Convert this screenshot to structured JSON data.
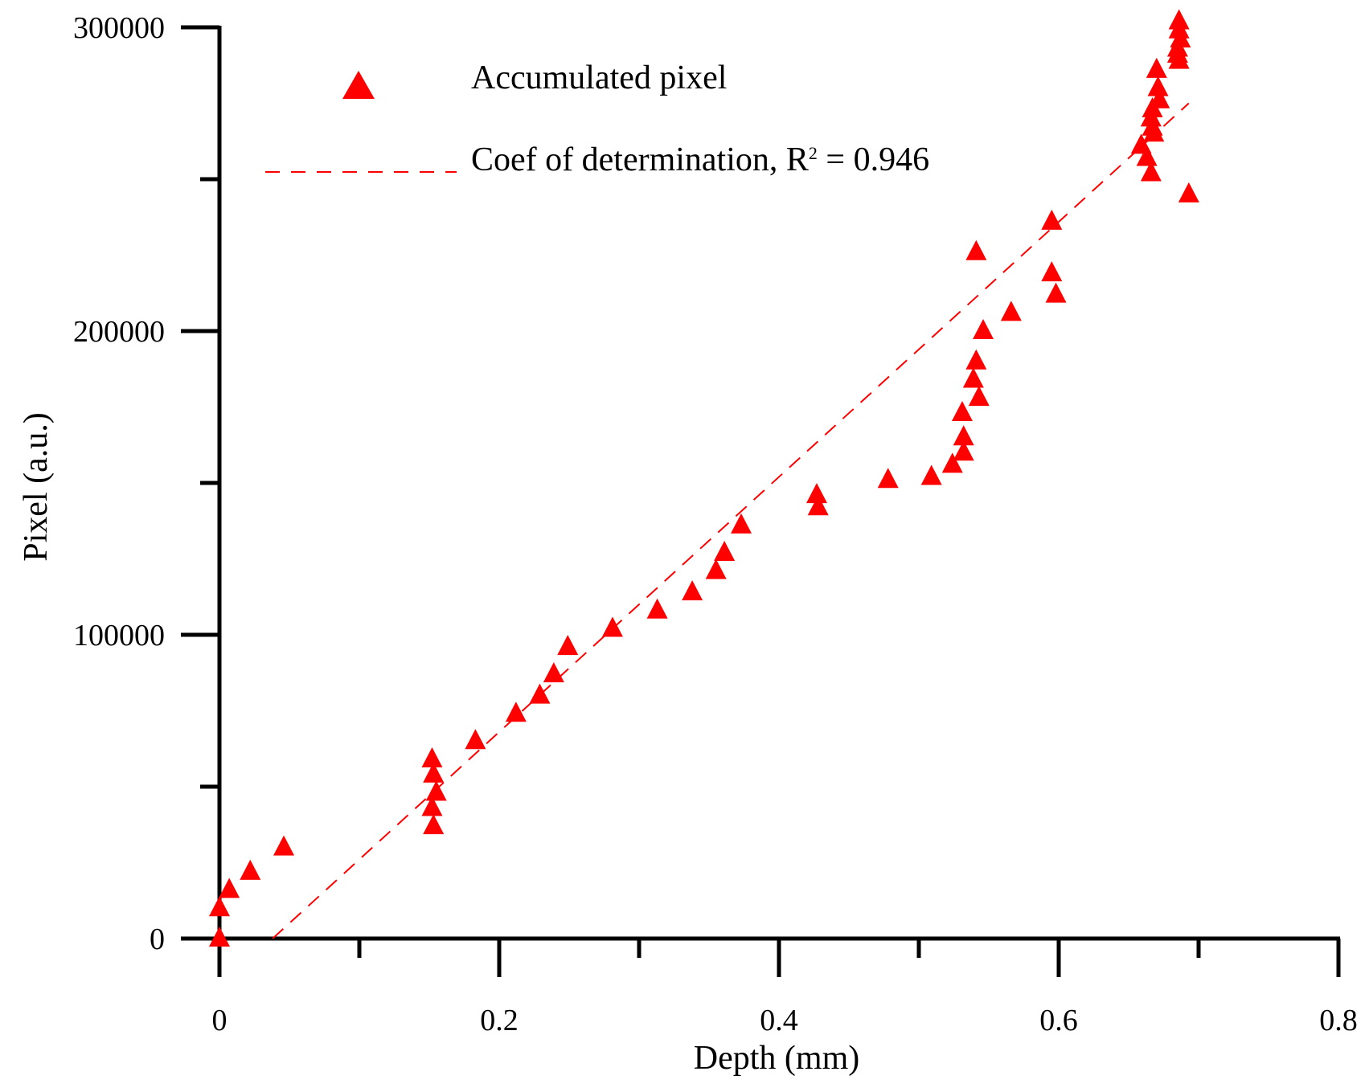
{
  "colors": {
    "series": "#ff0000",
    "axis": "#000000",
    "background": "#ffffff"
  },
  "chart_data": {
    "type": "scatter",
    "title": "",
    "xlabel": "Depth (mm)",
    "ylabel": "Pixel (a.u.)",
    "xlim": [
      0,
      0.8
    ],
    "ylim": [
      0,
      300000
    ],
    "x_ticks": [
      0,
      0.2,
      0.4,
      0.6,
      0.8
    ],
    "x_tick_labels": [
      "0",
      "0.2",
      "0.4",
      "0.6",
      "0.8"
    ],
    "x_minor_ticks": [
      0.1,
      0.3,
      0.5,
      0.7
    ],
    "y_ticks": [
      0,
      100000,
      200000,
      300000
    ],
    "y_tick_labels": [
      "0",
      "100000",
      "200000",
      "300000"
    ],
    "y_minor_ticks": [
      50000,
      150000,
      250000
    ],
    "grid": false,
    "legend_position": "top-left",
    "series": [
      {
        "name": "Accumulated pixel",
        "marker": "triangle",
        "color": "#ff0000",
        "points": [
          [
            0.0,
            0
          ],
          [
            0.0,
            10000
          ],
          [
            0.007,
            16000
          ],
          [
            0.022,
            22000
          ],
          [
            0.046,
            30000
          ],
          [
            0.153,
            37000
          ],
          [
            0.152,
            43000
          ],
          [
            0.155,
            48000
          ],
          [
            0.153,
            54000
          ],
          [
            0.152,
            59000
          ],
          [
            0.183,
            65000
          ],
          [
            0.212,
            74000
          ],
          [
            0.229,
            80000
          ],
          [
            0.239,
            87000
          ],
          [
            0.249,
            96000
          ],
          [
            0.281,
            102000
          ],
          [
            0.313,
            108000
          ],
          [
            0.338,
            114000
          ],
          [
            0.355,
            121000
          ],
          [
            0.361,
            127000
          ],
          [
            0.373,
            136000
          ],
          [
            0.428,
            142000
          ],
          [
            0.427,
            146000
          ],
          [
            0.478,
            151000
          ],
          [
            0.509,
            152000
          ],
          [
            0.524,
            156000
          ],
          [
            0.532,
            160000
          ],
          [
            0.532,
            165000
          ],
          [
            0.531,
            173000
          ],
          [
            0.543,
            178000
          ],
          [
            0.539,
            184000
          ],
          [
            0.541,
            190000
          ],
          [
            0.546,
            200000
          ],
          [
            0.566,
            206000
          ],
          [
            0.598,
            212000
          ],
          [
            0.595,
            219000
          ],
          [
            0.541,
            226000
          ],
          [
            0.595,
            236000
          ],
          [
            0.693,
            245000
          ],
          [
            0.666,
            252000
          ],
          [
            0.663,
            257000
          ],
          [
            0.659,
            261000
          ],
          [
            0.668,
            265000
          ],
          [
            0.667,
            267000
          ],
          [
            0.666,
            270000
          ],
          [
            0.667,
            273000
          ],
          [
            0.672,
            276000
          ],
          [
            0.671,
            280000
          ],
          [
            0.67,
            286000
          ],
          [
            0.686,
            289000
          ],
          [
            0.685,
            291000
          ],
          [
            0.685,
            293000
          ],
          [
            0.687,
            296000
          ],
          [
            0.686,
            299000
          ],
          [
            0.686,
            302000
          ]
        ]
      },
      {
        "name": "Coef of determination, R",
        "name_superscript": "2",
        "name_suffix": " = 0.946",
        "line_style": "dashed",
        "color": "#ff0000",
        "points": [
          [
            0.038,
            0
          ],
          [
            0.693,
            275000
          ]
        ]
      }
    ]
  }
}
